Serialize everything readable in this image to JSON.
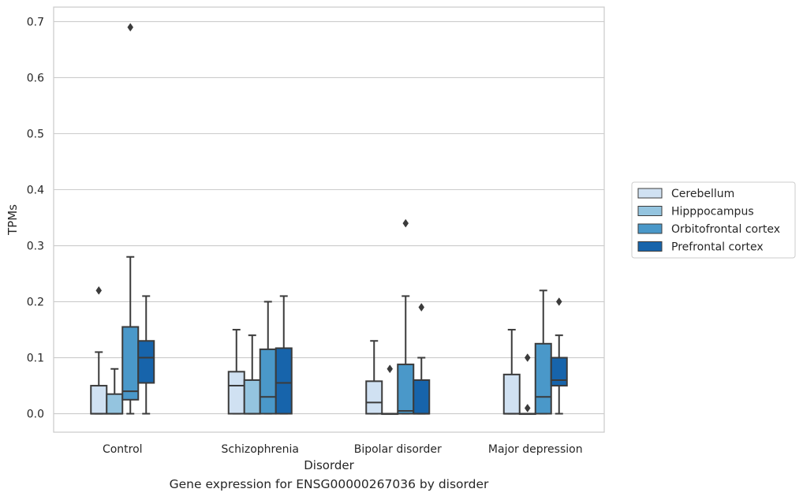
{
  "chart_data": {
    "type": "box",
    "title": "",
    "xlabel": "Disorder",
    "ylabel": "TPMs",
    "caption": "Gene expression for ENSG00000267036 by disorder",
    "ylim": [
      -0.033,
      0.726
    ],
    "yticks": [
      0.0,
      0.1,
      0.2,
      0.3,
      0.4,
      0.5,
      0.6,
      0.7
    ],
    "ytick_labels": [
      "0.0",
      "0.1",
      "0.2",
      "0.3",
      "0.4",
      "0.5",
      "0.6",
      "0.7"
    ],
    "grid": "horizontal",
    "legend_placement": "center-right outside",
    "categories": [
      "Control",
      "Schizophrenia",
      "Bipolar disorder",
      "Major depression"
    ],
    "series": [
      {
        "name": "Cerebellum",
        "color": "#d0e1f2",
        "boxes": [
          {
            "min": 0.0,
            "q1": 0.0,
            "median": 0.0,
            "q3": 0.05,
            "max": 0.11,
            "outliers": [
              0.22
            ]
          },
          {
            "min": 0.0,
            "q1": 0.0,
            "median": 0.05,
            "q3": 0.075,
            "max": 0.15,
            "outliers": []
          },
          {
            "min": 0.0,
            "q1": 0.0,
            "median": 0.02,
            "q3": 0.058,
            "max": 0.13,
            "outliers": []
          },
          {
            "min": 0.0,
            "q1": 0.0,
            "median": 0.0,
            "q3": 0.07,
            "max": 0.15,
            "outliers": []
          }
        ]
      },
      {
        "name": "Hipppocampus",
        "color": "#94c4df",
        "boxes": [
          {
            "min": 0.0,
            "q1": 0.0,
            "median": 0.0,
            "q3": 0.035,
            "max": 0.08,
            "outliers": []
          },
          {
            "min": 0.0,
            "q1": 0.0,
            "median": 0.0,
            "q3": 0.06,
            "max": 0.14,
            "outliers": []
          },
          {
            "min": 0.0,
            "q1": 0.0,
            "median": 0.0,
            "q3": 0.0,
            "max": 0.0,
            "outliers": [
              0.08
            ]
          },
          {
            "min": 0.0,
            "q1": 0.0,
            "median": 0.0,
            "q3": 0.0,
            "max": 0.0,
            "outliers": [
              0.01,
              0.1
            ]
          }
        ]
      },
      {
        "name": "Orbitofrontal cortex",
        "color": "#4a98c9",
        "boxes": [
          {
            "min": 0.0,
            "q1": 0.025,
            "median": 0.04,
            "q3": 0.155,
            "max": 0.28,
            "outliers": [
              0.69
            ]
          },
          {
            "min": 0.0,
            "q1": 0.0,
            "median": 0.03,
            "q3": 0.115,
            "max": 0.2,
            "outliers": []
          },
          {
            "min": 0.0,
            "q1": 0.0,
            "median": 0.005,
            "q3": 0.088,
            "max": 0.21,
            "outliers": [
              0.34
            ]
          },
          {
            "min": 0.0,
            "q1": 0.0,
            "median": 0.03,
            "q3": 0.125,
            "max": 0.22,
            "outliers": []
          }
        ]
      },
      {
        "name": "Prefrontal cortex",
        "color": "#1764ab",
        "boxes": [
          {
            "min": 0.0,
            "q1": 0.055,
            "median": 0.1,
            "q3": 0.13,
            "max": 0.21,
            "outliers": []
          },
          {
            "min": 0.0,
            "q1": 0.0,
            "median": 0.055,
            "q3": 0.117,
            "max": 0.21,
            "outliers": []
          },
          {
            "min": 0.0,
            "q1": 0.0,
            "median": 0.0,
            "q3": 0.06,
            "max": 0.1,
            "outliers": [
              0.19
            ]
          },
          {
            "min": 0.0,
            "q1": 0.05,
            "median": 0.06,
            "q3": 0.1,
            "max": 0.14,
            "outliers": [
              0.2
            ]
          }
        ]
      }
    ]
  }
}
